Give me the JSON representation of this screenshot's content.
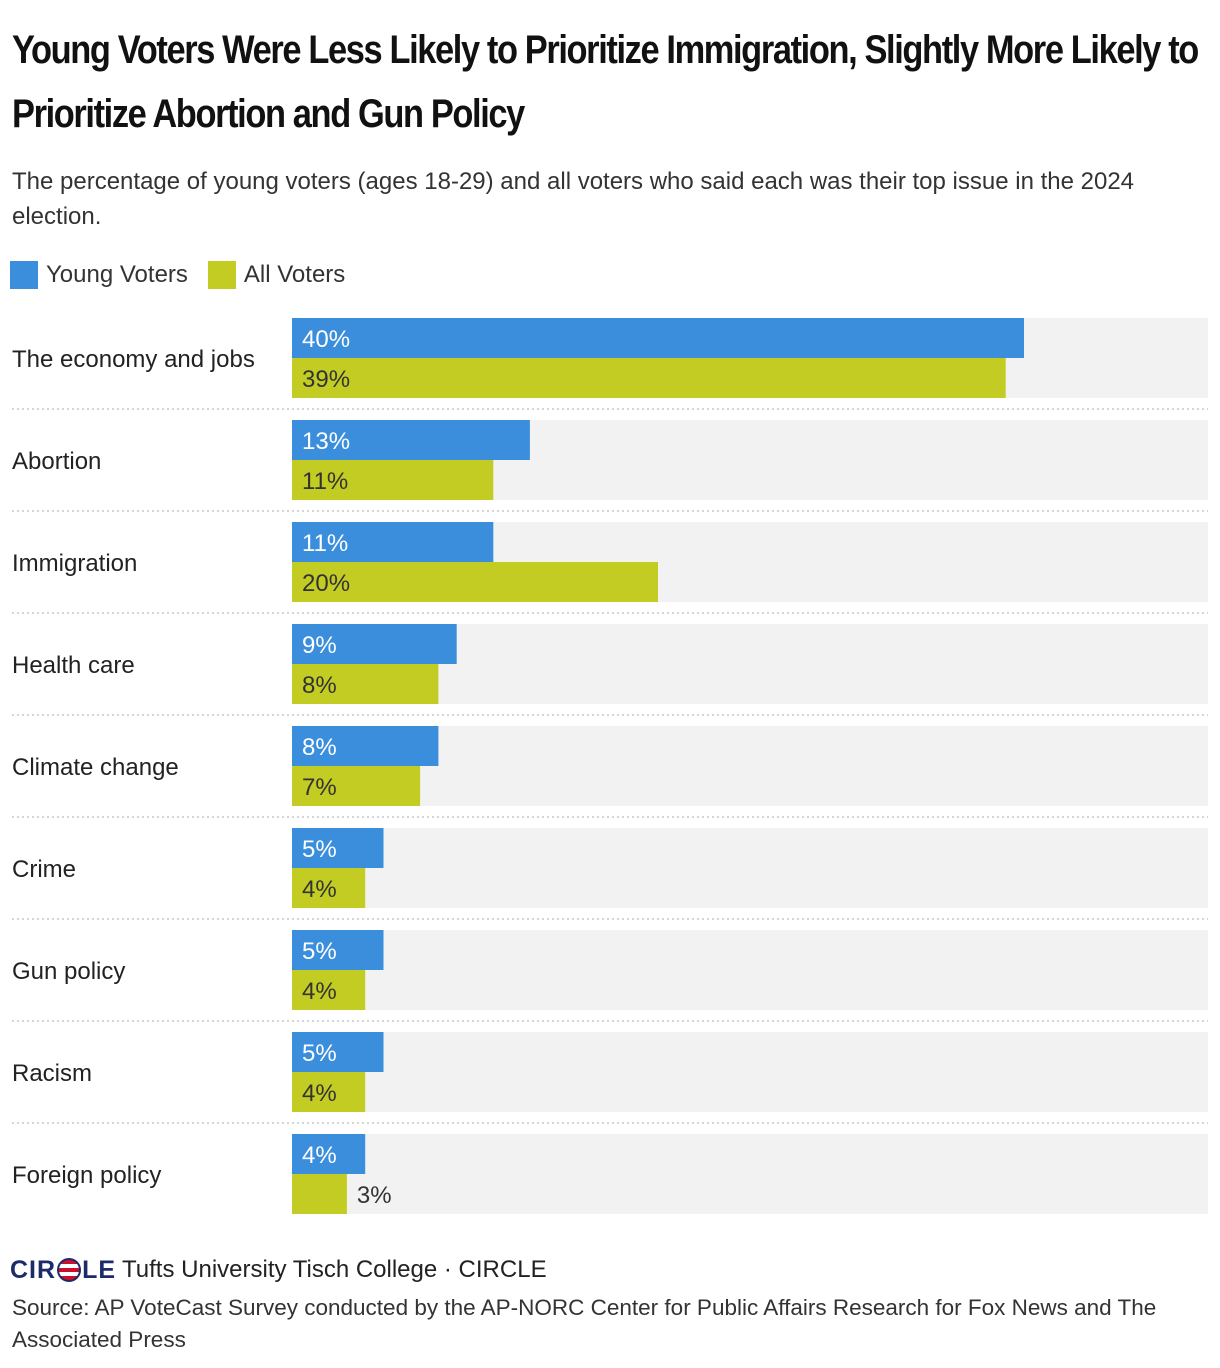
{
  "header": {
    "title": "Young Voters Were Less Likely to Prioritize Immigration, Slightly More Likely to Prioritize Abortion and Gun Policy",
    "subtitle": "The percentage of young voters (ages 18-29) and all voters who said each was their top issue in the 2024 election."
  },
  "colors": {
    "young": "#3b8edc",
    "all": "#c3cc22",
    "track": "#f2f2f2",
    "label_on_blue": "#ffffff",
    "label_on_green": "#333333"
  },
  "chart_data": {
    "type": "bar",
    "orientation": "horizontal",
    "categories": [
      "The economy and jobs",
      "Abortion",
      "Immigration",
      "Health care",
      "Climate change",
      "Crime",
      "Gun policy",
      "Racism",
      "Foreign policy"
    ],
    "series": [
      {
        "name": "Young Voters",
        "values": [
          40,
          13,
          11,
          9,
          8,
          5,
          5,
          5,
          4
        ]
      },
      {
        "name": "All Voters",
        "values": [
          39,
          11,
          20,
          8,
          7,
          4,
          4,
          4,
          3
        ]
      }
    ],
    "value_format": "%",
    "xlim": [
      0,
      50
    ],
    "legend": "top-left",
    "grid": false
  },
  "footer": {
    "logo": "CIRCLE",
    "brand": "Tufts University Tisch College · CIRCLE",
    "source": "Source: AP VoteCast Survey conducted by the AP-NORC Center for Public Affairs Research for Fox News and The Associated Press"
  }
}
